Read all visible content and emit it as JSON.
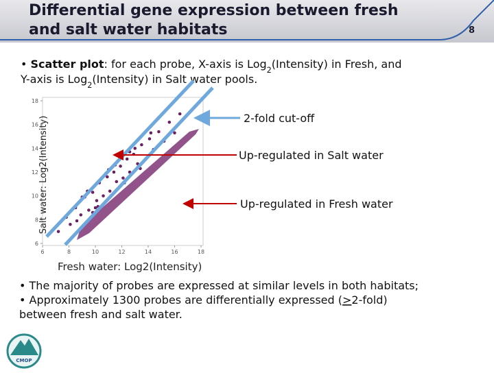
{
  "header": {
    "title_lines": [
      "Differential gene expression between fresh",
      "and salt water habitats"
    ],
    "page_number": "8"
  },
  "intro": [
    {
      "text": "• ",
      "style": "plain"
    },
    {
      "text": "Scatter plot",
      "style": "bold"
    },
    {
      "text": ": for each probe, X-axis is Log",
      "style": "plain"
    },
    {
      "text": "2",
      "style": "sub"
    },
    {
      "text": "(Intensity) in Fresh, and",
      "style": "plain"
    },
    {
      "text": "Y-axis is Log",
      "style": "break"
    },
    {
      "text": "2",
      "style": "sub"
    },
    {
      "text": "(Intensity) in Salt water pools.",
      "style": "plain"
    }
  ],
  "chart_data": {
    "type": "scatter",
    "x_label": "Fresh water: Log2(Intensity)",
    "y_label": "Salt water: Log2(Intensity)",
    "color": "#7b1c6e",
    "x": [
      7.2,
      7.8,
      8.1,
      8.5,
      8.9,
      9.2,
      9.5,
      9.8,
      10.1,
      10.3,
      10.6,
      10.9,
      11.1,
      11.4,
      11.6,
      11.9,
      12.1,
      12.4,
      12.6,
      12.9,
      13.2,
      13.5,
      13.8,
      14.1,
      14.4,
      14.8,
      15.2,
      15.6,
      16.0,
      16.4,
      8.6,
      9.4,
      10.2,
      11.0,
      11.8,
      12.6,
      13.4,
      14.2,
      9.0,
      10.0,
      11.5,
      12.2,
      13.0,
      9.8,
      10.8
    ],
    "y": [
      7.0,
      8.2,
      7.6,
      9.0,
      8.4,
      9.9,
      8.8,
      10.3,
      9.6,
      11.1,
      10.0,
      11.6,
      10.4,
      12.0,
      11.2,
      12.5,
      11.5,
      13.1,
      12.0,
      13.5,
      12.7,
      14.3,
      13.1,
      14.8,
      13.9,
      15.4,
      14.6,
      16.2,
      15.3,
      16.9,
      7.9,
      10.4,
      9.1,
      12.2,
      10.7,
      13.7,
      12.3,
      15.3,
      9.9,
      9.0,
      12.6,
      11.1,
      14.0,
      8.6,
      11.9
    ],
    "xlim": [
      6,
      18
    ],
    "ylim": [
      6,
      18
    ],
    "xticks": [
      6,
      8,
      10,
      12,
      14,
      16,
      18
    ],
    "yticks": [
      6,
      8,
      10,
      12,
      14,
      16,
      18
    ],
    "annotations": [
      "2-fold cut-off",
      "Up-regulated in Salt water",
      "Up-regulated in Fresh water"
    ]
  },
  "bullets": [
    [
      {
        "text": "• The majority of probes are expressed at similar levels in both habitats;",
        "style": "plain"
      }
    ],
    [
      {
        "text": "• Approximately 1300 probes are differentially expressed (",
        "style": "plain"
      },
      {
        "text": ">",
        "style": "underline"
      },
      {
        "text": "2-fold)",
        "style": "plain"
      },
      {
        "text": "between fresh and salt water.",
        "style": "break"
      }
    ]
  ],
  "logo_text": "CMOP"
}
